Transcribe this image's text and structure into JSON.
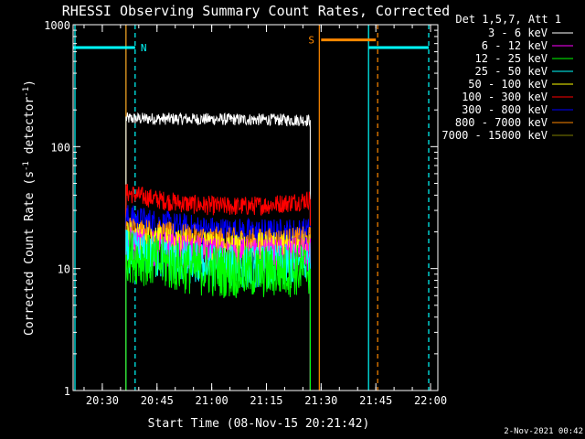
{
  "chart_data": {
    "type": "line",
    "title": "RHESSI Observing Summary Count Rates, Corrected",
    "xlabel": "Start Time (08-Nov-15 20:21:42)",
    "ylabel_main": "Corrected Count Rate (s",
    "ylabel_sup1": "-1",
    "ylabel_mid": " detector",
    "ylabel_sup2": "-1",
    "ylabel_end": ")",
    "yscale": "log",
    "ylim": [
      1,
      1000
    ],
    "xlim": [
      "20:22:00",
      "22:02:00"
    ],
    "xlim_minutes": [
      1222,
      1322
    ],
    "x_ticks": [
      {
        "label": "20:30",
        "min": 1230
      },
      {
        "label": "20:45",
        "min": 1245
      },
      {
        "label": "21:00",
        "min": 1260
      },
      {
        "label": "21:15",
        "min": 1275
      },
      {
        "label": "21:30",
        "min": 1290
      },
      {
        "label": "21:45",
        "min": 1305
      },
      {
        "label": "22:00",
        "min": 1320
      }
    ],
    "y_ticks": [
      {
        "label": "1",
        "value": 1
      },
      {
        "label": "10",
        "value": 10
      },
      {
        "label": "100",
        "value": 100
      },
      {
        "label": "1000",
        "value": 1000
      }
    ],
    "legend": {
      "position": "right",
      "header": "Det 1,5,7, Att 1",
      "entries": [
        {
          "label": "3 - 6 keV",
          "color": "#000000"
        },
        {
          "label": "6 - 12 keV",
          "color": "#ff00ff"
        },
        {
          "label": "12 - 25 keV",
          "color": "#00ff00"
        },
        {
          "label": "25 - 50 keV",
          "color": "#00ffff"
        },
        {
          "label": "50 - 100 keV",
          "color": "#ffff00"
        },
        {
          "label": "100 - 300 keV",
          "color": "#ff0000"
        },
        {
          "label": "300 - 800 keV",
          "color": "#0000ff"
        },
        {
          "label": "800 - 7000 keV",
          "color": "#ff8800"
        },
        {
          "label": "7000 - 15000 keV",
          "color": "#808000"
        }
      ]
    },
    "data_window": {
      "start_min": 1236.5,
      "end_min": 1287
    },
    "series": [
      {
        "name": "3 - 6 keV",
        "color": "#000000",
        "y_start": 170,
        "y_mid": 168,
        "y_end": 165,
        "noise": 0.05
      },
      {
        "name": "100 - 300 keV",
        "color": "#ff0000",
        "y_start": 42,
        "y_mid": 27,
        "y_end": 37,
        "noise": 0.08
      },
      {
        "name": "300 - 800 keV",
        "color": "#0000ff",
        "y_start": 26,
        "y_mid": 18,
        "y_end": 20,
        "noise": 0.12
      },
      {
        "name": "800 - 7000 keV",
        "color": "#ff8800",
        "y_start": 21,
        "y_mid": 15,
        "y_end": 17,
        "noise": 0.12
      },
      {
        "name": "50 - 100 keV",
        "color": "#ffff00",
        "y_start": 18,
        "y_mid": 13,
        "y_end": 15,
        "noise": 0.14
      },
      {
        "name": "6 - 12 keV",
        "color": "#ff00ff",
        "y_start": 16,
        "y_mid": 11.5,
        "y_end": 13,
        "noise": 0.15
      },
      {
        "name": "25 - 50 keV",
        "color": "#00ffff",
        "y_start": 14,
        "y_mid": 9,
        "y_end": 11,
        "noise": 0.18
      },
      {
        "name": "12 - 25 keV",
        "color": "#00ff00",
        "y_start": 13,
        "y_mid": 8,
        "y_end": 10,
        "noise": 0.22
      }
    ],
    "annotations": {
      "night_label": "N",
      "saa_label": "S",
      "night_segments": [
        {
          "start_min": 1222,
          "end_min": 1239,
          "value": 650
        },
        {
          "start_min": 1303,
          "end_min": 1319.5,
          "value": 650
        }
      ],
      "saa_segment": {
        "start_min": 1290,
        "end_min": 1305,
        "value": 750
      },
      "vlines": [
        {
          "min": 1222.5,
          "color": "#00ffff",
          "style": "solid"
        },
        {
          "min": 1236.5,
          "color": "#00ffff",
          "style": "solid"
        },
        {
          "min": 1239,
          "color": "#00ffff",
          "style": "dashed"
        },
        {
          "min": 1236.5,
          "color": "#ff8800",
          "style": "solid"
        },
        {
          "min": 1289.5,
          "color": "#ff8800",
          "style": "solid"
        },
        {
          "min": 1303,
          "color": "#00ffff",
          "style": "solid"
        },
        {
          "min": 1305.5,
          "color": "#ff8800",
          "style": "dashed"
        },
        {
          "min": 1319.5,
          "color": "#00ffff",
          "style": "dashed"
        }
      ]
    },
    "timestamp": "2-Nov-2021 00:42"
  }
}
